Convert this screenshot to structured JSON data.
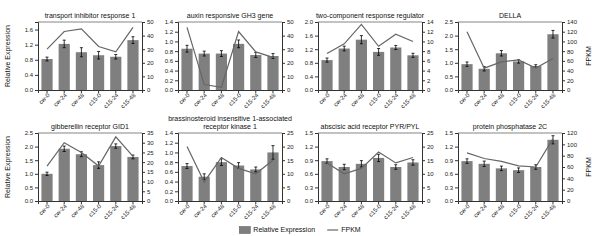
{
  "chart_data": [
    {
      "type": "bar",
      "title": "transport inhibitor response 1",
      "categories": [
        "cw-0",
        "cw-24",
        "cw-48",
        "c15-0",
        "c15-24",
        "c15-48"
      ],
      "series": [
        {
          "name": "Relative Expression",
          "type": "bar",
          "color": "#7f7f7f",
          "values": [
            0.82,
            1.22,
            1.0,
            0.92,
            0.88,
            1.32
          ],
          "errors": [
            0.05,
            0.1,
            0.12,
            0.1,
            0.06,
            0.09
          ]
        },
        {
          "name": "FPKM",
          "type": "line",
          "color": "#666666",
          "axis": "y2",
          "values": [
            30,
            43,
            45,
            32,
            28,
            46
          ]
        }
      ],
      "ylim": [
        0,
        1.8
      ],
      "yticks": [
        {
          "value": 0.0,
          "label": "0.0"
        },
        0.4,
        0.8,
        1.2,
        1.6
      ],
      "y2lim": [
        0,
        50
      ],
      "y2ticks": [
        0,
        10,
        20,
        30,
        40,
        50
      ],
      "ylabel": "Relative Expression",
      "legend": "bottom"
    },
    {
      "type": "bar",
      "title": "auxin responsive GH3 gene",
      "categories": [
        "cw-0",
        "cw-24",
        "cw-48",
        "c15-0",
        "c15-24",
        "c15-48"
      ],
      "series": [
        {
          "name": "Relative Expression",
          "type": "bar",
          "color": "#7f7f7f",
          "values": [
            0.85,
            0.75,
            0.75,
            0.95,
            0.72,
            0.7
          ],
          "errors": [
            0.07,
            0.05,
            0.06,
            0.08,
            0.05,
            0.05
          ]
        },
        {
          "name": "FPKM",
          "type": "line",
          "color": "#666666",
          "axis": "y2",
          "values": [
            46,
            4,
            2,
            43,
            28,
            24
          ]
        }
      ],
      "ylim": [
        0,
        1.4
      ],
      "yticks": [
        {
          "value": 0.0,
          "label": "0.0"
        },
        0.2,
        0.4,
        0.6,
        0.8,
        {
          "value": 1.0,
          "label": "1.0"
        },
        1.2,
        1.4
      ],
      "y2lim": [
        0,
        50
      ],
      "y2ticks": [
        0,
        10,
        20,
        30,
        40,
        50
      ]
    },
    {
      "type": "bar",
      "title": "two-component response regulator",
      "categories": [
        "cw-0",
        "cw-24",
        "cw-48",
        "c15-0",
        "c15-24",
        "c15-48"
      ],
      "series": [
        {
          "name": "Relative Expression",
          "type": "bar",
          "color": "#7f7f7f",
          "values": [
            0.88,
            1.22,
            1.48,
            1.12,
            1.25,
            1.02
          ],
          "errors": [
            0.06,
            0.07,
            0.12,
            0.1,
            0.06,
            0.06
          ]
        },
        {
          "name": "FPKM",
          "type": "line",
          "color": "#666666",
          "axis": "y2",
          "values": [
            7.5,
            9.5,
            13.5,
            9.0,
            11.5,
            10.0
          ]
        }
      ],
      "ylim": [
        0,
        2.0
      ],
      "yticks": [
        {
          "value": 0.0,
          "label": "0.0"
        },
        0.4,
        0.8,
        1.2,
        1.6,
        {
          "value": 2.0,
          "label": "2.0"
        }
      ],
      "y2lim": [
        0,
        14
      ],
      "y2ticks": [
        0,
        2,
        4,
        6,
        8,
        10,
        12,
        14
      ]
    },
    {
      "type": "bar",
      "title": "DELLA",
      "categories": [
        "cw-0",
        "cw-24",
        "cw-48",
        "c15-0",
        "c15-24",
        "c15-48"
      ],
      "series": [
        {
          "name": "Relative Expression",
          "type": "bar",
          "color": "#7f7f7f",
          "values": [
            0.95,
            0.78,
            1.35,
            1.05,
            0.88,
            2.05
          ],
          "errors": [
            0.08,
            0.08,
            0.1,
            0.06,
            0.05,
            0.14
          ]
        },
        {
          "name": "FPKM",
          "type": "line",
          "color": "#666666",
          "axis": "y2",
          "values": [
            120,
            45,
            58,
            62,
            45,
            65
          ]
        }
      ],
      "ylim": [
        0,
        2.5
      ],
      "yticks": [
        {
          "value": 0.0,
          "label": "0.0"
        },
        0.5,
        {
          "value": 1.0,
          "label": "1.0"
        },
        1.5,
        {
          "value": 2.0,
          "label": "2.0"
        },
        2.5
      ],
      "y2lim": [
        0,
        140
      ],
      "y2ticks": [
        0,
        20,
        40,
        60,
        80,
        100,
        120,
        140
      ],
      "y2label": "FPKM"
    },
    {
      "type": "bar",
      "title": "gibberellin receptor GID1",
      "categories": [
        "cw-0",
        "cw-24",
        "cw-48",
        "c15-0",
        "c15-24",
        "c15-48"
      ],
      "series": [
        {
          "name": "Relative Expression",
          "type": "bar",
          "color": "#7f7f7f",
          "values": [
            1.0,
            1.92,
            1.72,
            1.32,
            2.02,
            1.62
          ],
          "errors": [
            0.06,
            0.1,
            0.09,
            0.12,
            0.08,
            0.07
          ]
        },
        {
          "name": "FPKM",
          "type": "line",
          "color": "#666666",
          "axis": "y2",
          "values": [
            18,
            30,
            25,
            18,
            33,
            23
          ]
        }
      ],
      "ylim": [
        0,
        2.5
      ],
      "yticks": [
        {
          "value": 0.0,
          "label": "0.0"
        },
        0.5,
        {
          "value": 1.0,
          "label": "1.0"
        },
        1.5,
        {
          "value": 2.0,
          "label": "2.0"
        },
        2.5
      ],
      "y2lim": [
        0,
        35
      ],
      "y2ticks": [
        0,
        5,
        10,
        15,
        20,
        25,
        30,
        35
      ],
      "ylabel": "Relative Expression"
    },
    {
      "type": "bar",
      "title": "brassinosteroid insensitive 1-associated\nreceptor kinase 1",
      "categories": [
        "cw-0",
        "cw-24",
        "cw-48",
        "c15-0",
        "c15-24",
        "c15-48"
      ],
      "series": [
        {
          "name": "Relative Expression",
          "type": "bar",
          "color": "#7f7f7f",
          "values": [
            0.72,
            0.5,
            0.8,
            0.73,
            0.65,
            1.0
          ],
          "errors": [
            0.05,
            0.06,
            0.07,
            0.06,
            0.05,
            0.14
          ]
        },
        {
          "name": "FPKM",
          "type": "line",
          "color": "#666666",
          "axis": "y2",
          "values": [
            20,
            7,
            16,
            12,
            10,
            15
          ]
        }
      ],
      "ylim": [
        0,
        1.4
      ],
      "yticks": [
        {
          "value": 0.0,
          "label": "0.0"
        },
        0.2,
        0.4,
        0.6,
        0.8,
        {
          "value": 1.0,
          "label": "1.0"
        },
        1.2,
        1.4
      ],
      "y2lim": [
        0,
        25
      ],
      "y2ticks": [
        0,
        5,
        10,
        15,
        20,
        25
      ]
    },
    {
      "type": "bar",
      "title": "abscisic acid receptor PYR/PYL",
      "categories": [
        "cw-0",
        "cw-24",
        "cw-48",
        "c15-0",
        "c15-24",
        "c15-48"
      ],
      "series": [
        {
          "name": "Relative Expression",
          "type": "bar",
          "color": "#7f7f7f",
          "values": [
            0.88,
            0.75,
            0.82,
            0.95,
            0.75,
            0.85
          ],
          "errors": [
            0.05,
            0.06,
            0.07,
            0.08,
            0.05,
            0.06
          ]
        },
        {
          "name": "FPKM",
          "type": "line",
          "color": "#666666",
          "axis": "y2",
          "values": [
            14,
            10,
            12,
            18,
            14,
            16
          ]
        }
      ],
      "ylim": [
        0,
        1.5
      ],
      "yticks": [
        {
          "value": 0.0,
          "label": "0.0"
        },
        0.3,
        0.6,
        0.9,
        1.2,
        1.5
      ],
      "y2lim": [
        0,
        25
      ],
      "y2ticks": [
        0,
        5,
        10,
        15,
        20,
        25
      ]
    },
    {
      "type": "bar",
      "title": "protein phosphatase 2C",
      "categories": [
        "cw-0",
        "cw-24",
        "cw-48",
        "c15-0",
        "c15-24",
        "c15-48"
      ],
      "series": [
        {
          "name": "Relative Expression",
          "type": "bar",
          "color": "#7f7f7f",
          "values": [
            0.88,
            0.82,
            0.72,
            0.68,
            0.75,
            1.35
          ],
          "errors": [
            0.05,
            0.06,
            0.05,
            0.05,
            0.05,
            0.09
          ]
        },
        {
          "name": "FPKM",
          "type": "line",
          "color": "#666666",
          "axis": "y2",
          "values": [
            85,
            75,
            70,
            62,
            60,
            110
          ]
        }
      ],
      "ylim": [
        0,
        1.5
      ],
      "yticks": [
        {
          "value": 0.0,
          "label": "0.0"
        },
        0.3,
        0.6,
        0.9,
        1.2,
        1.5
      ],
      "y2lim": [
        0,
        120
      ],
      "y2ticks": [
        0,
        20,
        40,
        60,
        80,
        100,
        120
      ],
      "y2label": "FPKM"
    }
  ]
}
